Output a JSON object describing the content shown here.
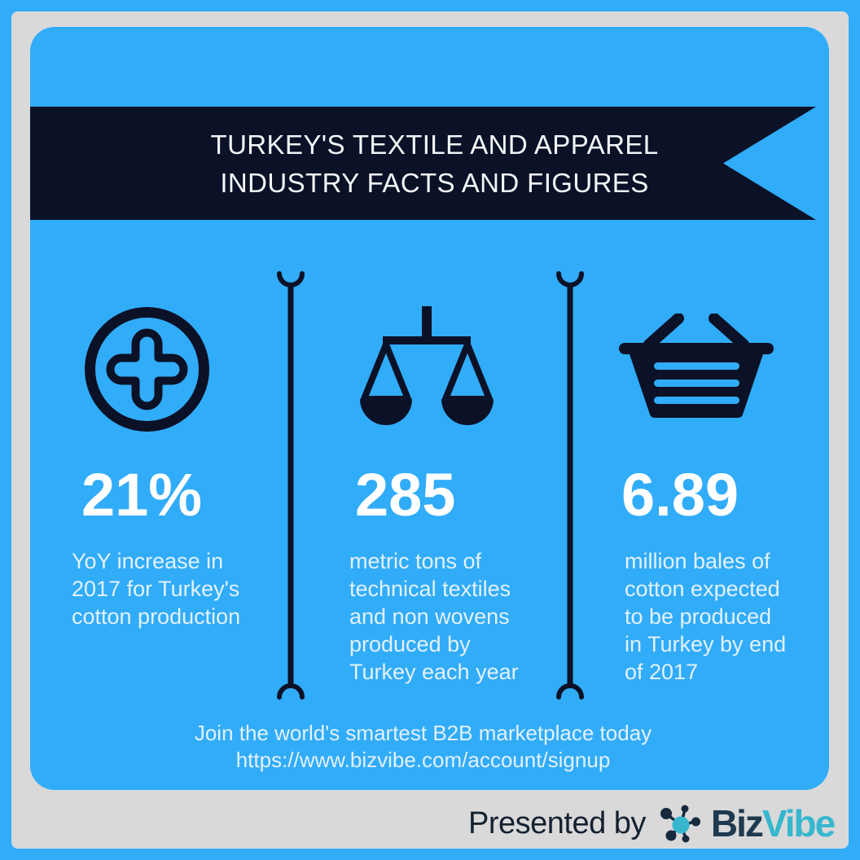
{
  "colors": {
    "background_blue": "#31acf9",
    "frame_gray": "#d9d9d9",
    "navy": "#0b1126",
    "stat_number_white": "#ffffff",
    "body_text_light": "#e3f1fc",
    "title_white": "#f3f6f8",
    "presented_by_navy": "#14212f",
    "logo_navy": "#1e3a50",
    "logo_teal": "#36b7ce"
  },
  "banner": {
    "title_line1": "TURKEY'S TEXTILE AND APPAREL",
    "title_line2": "INDUSTRY FACTS AND FIGURES"
  },
  "stats": [
    {
      "icon": "plus-circle-icon",
      "value": "21%",
      "description_lines": [
        "YoY increase in",
        "2017 for Turkey's",
        "cotton production"
      ]
    },
    {
      "icon": "balance-scale-icon",
      "value": "285",
      "description_lines": [
        "metric tons of",
        "technical textiles",
        "and non wovens",
        "produced by",
        "Turkey each year"
      ]
    },
    {
      "icon": "shopping-basket-icon",
      "value": "6.89",
      "description_lines": [
        "million bales of",
        "cotton expected",
        "to be produced",
        "in Turkey by end",
        "of 2017"
      ]
    }
  ],
  "footer": {
    "cta": "Join the world's smartest B2B marketplace today",
    "url": "https://www.bizvibe.com/account/signup"
  },
  "branding": {
    "presented_by": "Presented by",
    "logo_primary": "Biz",
    "logo_secondary": "Vibe",
    "logo_icon": "bizvibe-network-icon"
  }
}
